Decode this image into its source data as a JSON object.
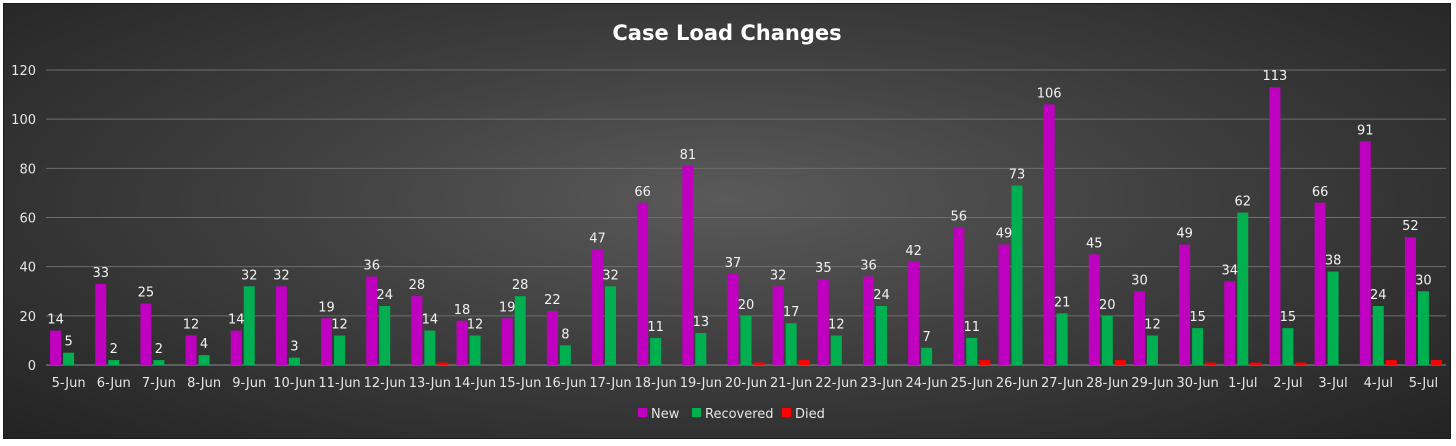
{
  "chart_data": {
    "type": "bar",
    "title": "Case Load Changes",
    "xlabel": "",
    "ylabel": "",
    "ylim": [
      0,
      120
    ],
    "yticks": [
      0,
      20,
      40,
      60,
      80,
      100,
      120
    ],
    "grid": true,
    "legend_position": "bottom",
    "categories": [
      "5-Jun",
      "6-Jun",
      "7-Jun",
      "8-Jun",
      "9-Jun",
      "10-Jun",
      "11-Jun",
      "12-Jun",
      "13-Jun",
      "14-Jun",
      "15-Jun",
      "16-Jun",
      "17-Jun",
      "18-Jun",
      "19-Jun",
      "20-Jun",
      "21-Jun",
      "22-Jun",
      "23-Jun",
      "24-Jun",
      "25-Jun",
      "26-Jun",
      "27-Jun",
      "28-Jun",
      "29-Jun",
      "30-Jun",
      "1-Jul",
      "2-Jul",
      "3-Jul",
      "4-Jul",
      "5-Jul"
    ],
    "series": [
      {
        "name": "New",
        "color": "#c000c0",
        "values": [
          14,
          33,
          25,
          12,
          14,
          32,
          19,
          36,
          28,
          18,
          19,
          22,
          47,
          66,
          81,
          37,
          32,
          35,
          36,
          42,
          56,
          49,
          106,
          45,
          30,
          49,
          34,
          113,
          66,
          91,
          52
        ],
        "labels": [
          14,
          33,
          25,
          12,
          14,
          32,
          19,
          36,
          28,
          18,
          19,
          22,
          47,
          66,
          81,
          37,
          32,
          35,
          36,
          42,
          56,
          49,
          106,
          45,
          30,
          49,
          34,
          113,
          66,
          91,
          52
        ]
      },
      {
        "name": "Recovered",
        "color": "#00b050",
        "values": [
          5,
          2,
          2,
          4,
          32,
          3,
          12,
          24,
          14,
          12,
          28,
          8,
          32,
          11,
          13,
          20,
          17,
          12,
          24,
          7,
          11,
          73,
          21,
          20,
          12,
          15,
          62,
          15,
          38,
          24,
          30
        ],
        "labels": [
          5,
          2,
          2,
          4,
          32,
          3,
          12,
          24,
          14,
          12,
          28,
          8,
          32,
          11,
          13,
          20,
          17,
          12,
          24,
          7,
          11,
          73,
          21,
          20,
          12,
          15,
          62,
          15,
          38,
          24,
          30
        ]
      },
      {
        "name": "Died",
        "color": "#ff0000",
        "values": [
          0,
          0,
          0,
          0,
          0,
          0,
          0,
          0,
          1,
          0,
          0,
          0,
          0,
          0,
          0,
          1,
          2,
          0,
          0,
          0,
          2,
          0,
          0,
          2,
          0,
          1,
          1,
          1,
          0,
          2,
          2
        ],
        "labels": null
      }
    ]
  }
}
